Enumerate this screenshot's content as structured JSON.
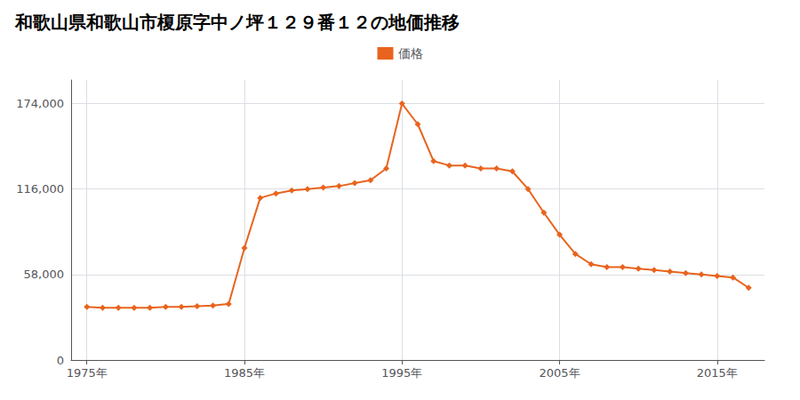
{
  "chart_data": {
    "type": "line",
    "title": "和歌山県和歌山市榎原字中ノ坪１２９番１２の地価推移",
    "x": [
      1975,
      1976,
      1977,
      1978,
      1979,
      1980,
      1981,
      1982,
      1983,
      1984,
      1985,
      1986,
      1987,
      1988,
      1989,
      1990,
      1991,
      1992,
      1993,
      1994,
      1995,
      1996,
      1997,
      1998,
      1999,
      2000,
      2001,
      2002,
      2003,
      2004,
      2005,
      2006,
      2007,
      2008,
      2009,
      2010,
      2011,
      2012,
      2013,
      2014,
      2015,
      2016,
      2017
    ],
    "series": [
      {
        "name": "価格",
        "color": "#e8641e",
        "marker": "diamond",
        "values": [
          36000,
          35500,
          35500,
          35500,
          35500,
          36000,
          36000,
          36500,
          37000,
          38000,
          76000,
          110000,
          113000,
          115000,
          116000,
          117000,
          118000,
          120000,
          122000,
          130000,
          174000,
          160000,
          135000,
          132000,
          132000,
          130000,
          130000,
          128000,
          116000,
          100000,
          85000,
          72000,
          65000,
          63000,
          63000,
          62000,
          61000,
          60000,
          59000,
          58000,
          57000,
          56000,
          49000
        ]
      }
    ],
    "xlim": [
      1974,
      2018
    ],
    "xticks": [
      {
        "value": 1975,
        "label": "1975年"
      },
      {
        "value": 1985,
        "label": "1985年"
      },
      {
        "value": 1995,
        "label": "1995年"
      },
      {
        "value": 2005,
        "label": "2005年"
      },
      {
        "value": 2015,
        "label": "2015年"
      }
    ],
    "ylim": [
      0,
      190000
    ],
    "yticks": [
      0,
      {
        "value": 58000,
        "label": "58,000"
      },
      {
        "value": 116000,
        "label": "116,000"
      },
      {
        "value": 174000,
        "label": "174,000"
      }
    ],
    "grid": true,
    "legend": "top"
  }
}
